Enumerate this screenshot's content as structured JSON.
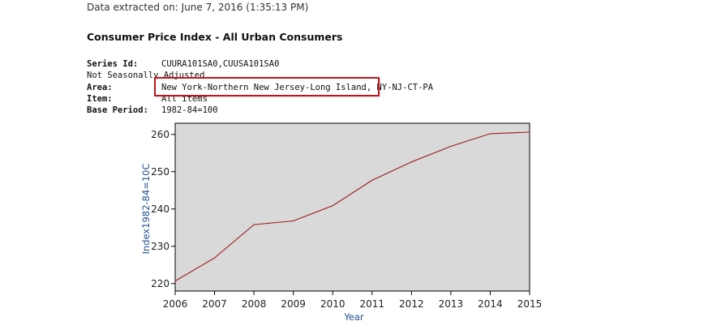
{
  "extracted": "Data extracted on: June 7, 2016 (1:35:13 PM)",
  "title": "Consumer Price Index - All Urban Consumers",
  "meta": {
    "series_id": {
      "key": "Series Id:",
      "value": "CUURA101SA0,CUUSA101SA0"
    },
    "seasonal": "Not Seasonally Adjusted",
    "area": {
      "key": "Area:",
      "value_highlighted": "New York-Northern New Jersey-Long Island,",
      "value_rest": " NY-NJ-CT-PA"
    },
    "item": {
      "key": "Item:",
      "value": "All items"
    },
    "base_period": {
      "key": "Base Period:",
      "value": "1982-84=100"
    }
  },
  "colors": {
    "highlight_border": "#c0171d",
    "plot_background": "#d9d9d9",
    "series_line": "#9b1c1c",
    "axis_title": "#1f4e8c"
  },
  "chart_data": {
    "type": "line",
    "title": "",
    "xlabel": "Year",
    "ylabel": "Index1982-84=10C",
    "xlim": [
      2006,
      2015
    ],
    "ylim": [
      218,
      263
    ],
    "x_ticks": [
      2006,
      2007,
      2008,
      2009,
      2010,
      2011,
      2012,
      2013,
      2014,
      2015
    ],
    "y_ticks": [
      220,
      230,
      240,
      250,
      260
    ],
    "grid": false,
    "series": [
      {
        "x": [
          2006,
          2007,
          2008,
          2009,
          2010,
          2011,
          2012,
          2013,
          2014,
          2015
        ],
        "values": [
          220.7,
          226.9,
          235.8,
          236.8,
          240.9,
          247.7,
          252.6,
          256.8,
          260.2,
          260.6
        ]
      }
    ]
  }
}
